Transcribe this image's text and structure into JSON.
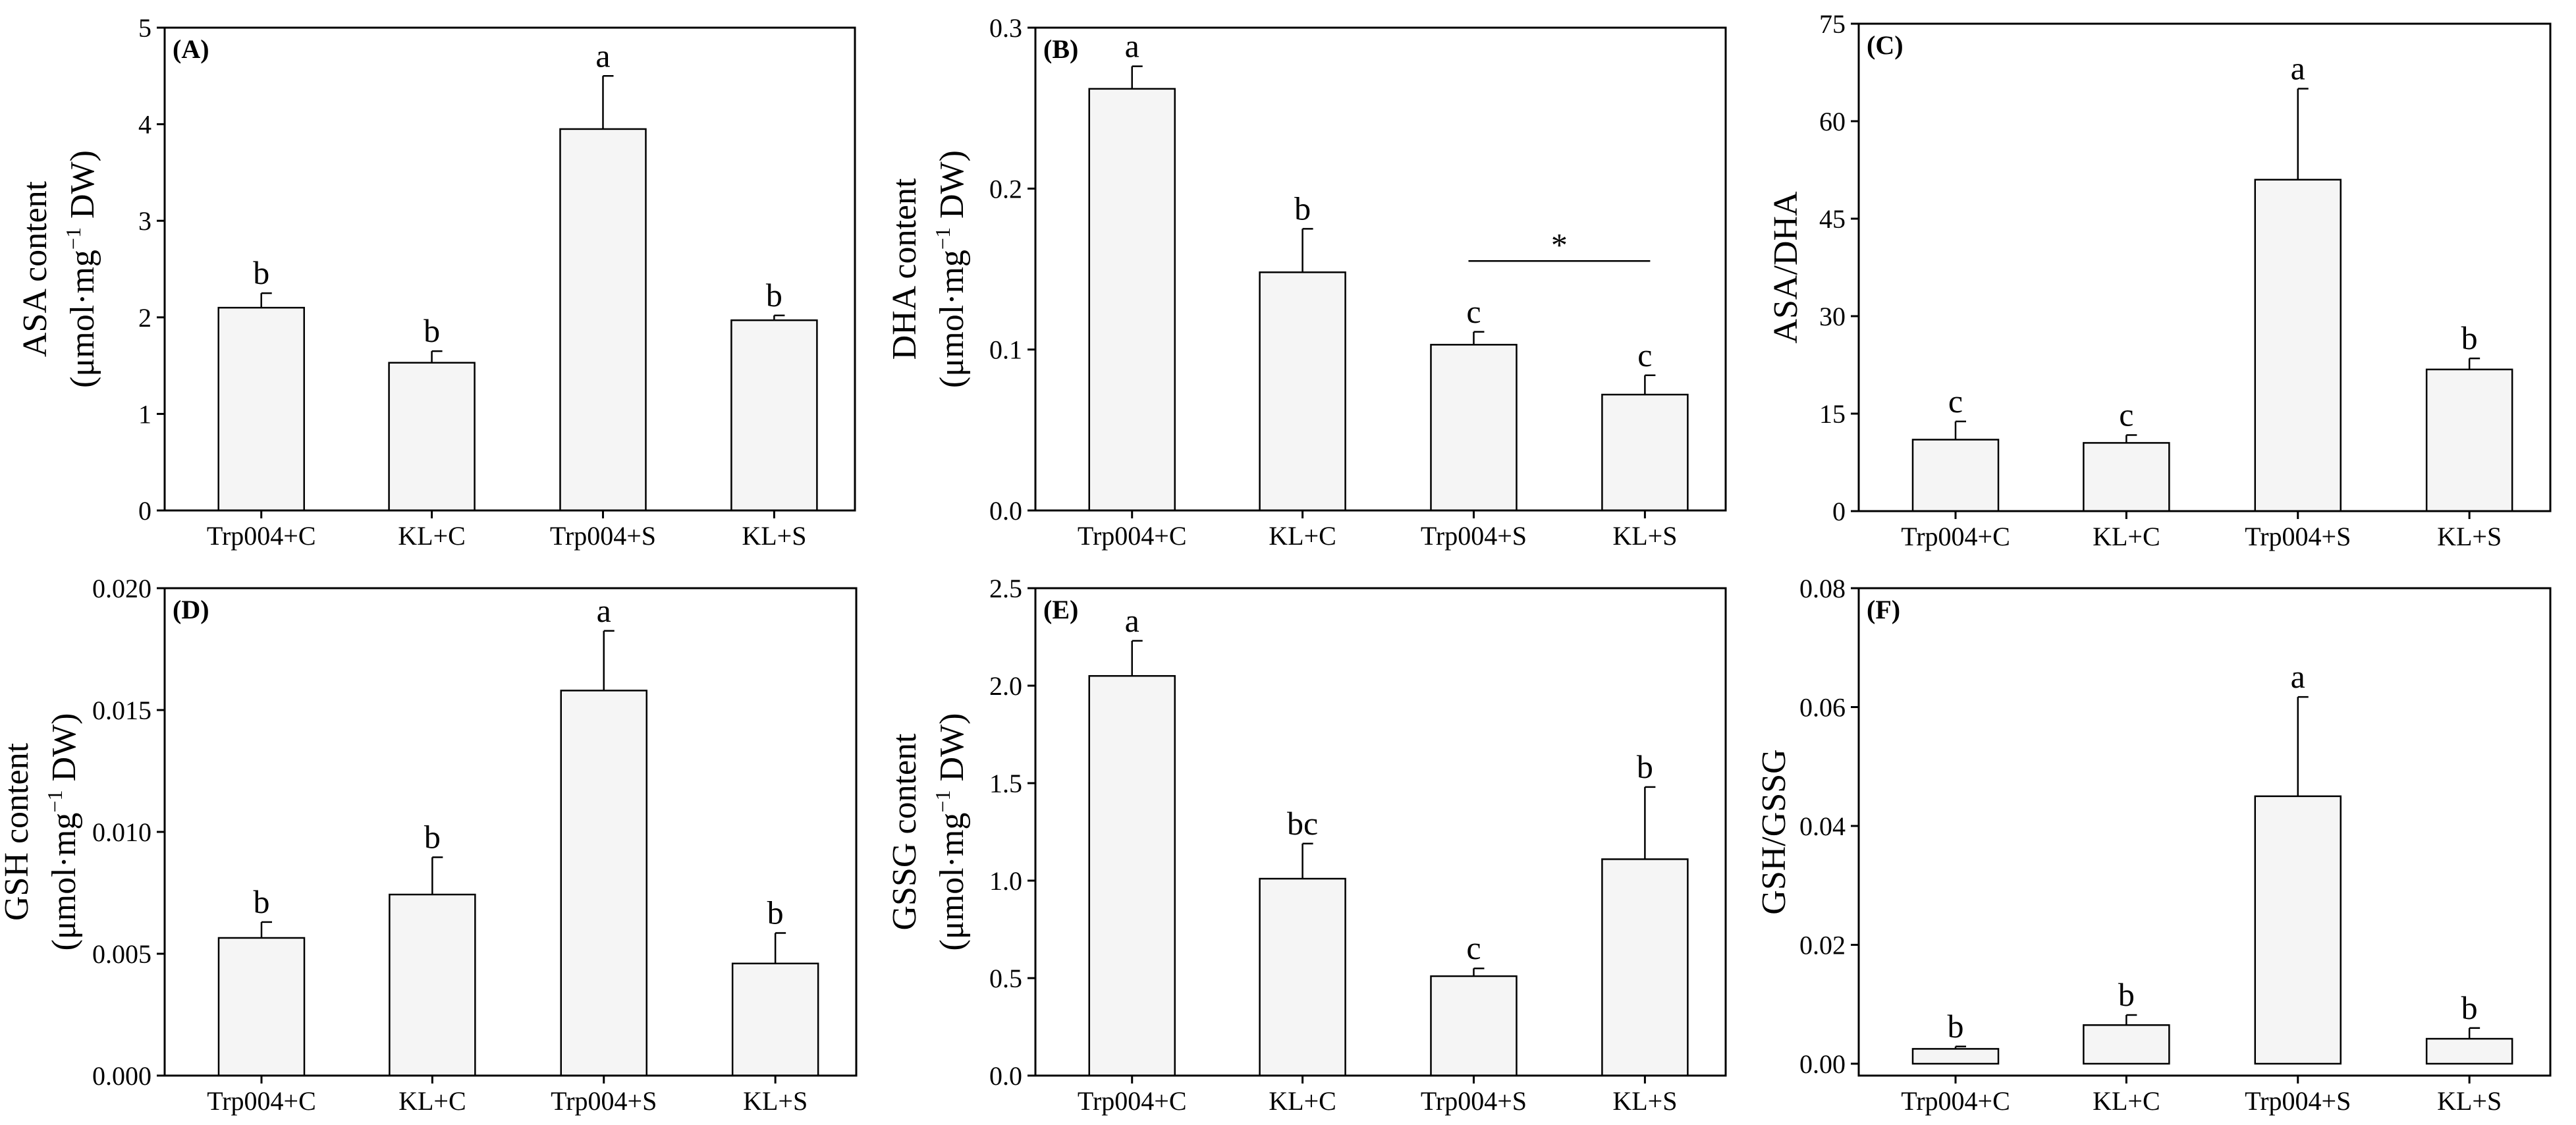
{
  "chart_data": [
    {
      "type": "bar",
      "panel_label": "(A)",
      "categories": [
        "Trp004+C",
        "KL+C",
        "Trp004+S",
        "KL+S"
      ],
      "values": [
        2.1,
        1.53,
        3.95,
        1.97
      ],
      "errors": [
        0.15,
        0.12,
        0.55,
        0.05
      ],
      "letters": [
        "b",
        "b",
        "a",
        "b"
      ],
      "ylabel_line1": "ASA content",
      "ylabel_line2": {
        "pre": "(μmol·mg",
        "sup": "−1",
        "post": " DW)"
      },
      "ylim": [
        0,
        5
      ],
      "yticks": [
        0,
        1,
        2,
        3,
        4,
        5
      ],
      "ytick_labels": [
        "0",
        "1",
        "2",
        "3",
        "4",
        "5"
      ]
    },
    {
      "type": "bar",
      "panel_label": "(B)",
      "categories": [
        "Trp004+C",
        "KL+C",
        "Trp004+S",
        "KL+S"
      ],
      "values": [
        0.262,
        0.148,
        0.103,
        0.072
      ],
      "errors": [
        0.014,
        0.027,
        0.008,
        0.012
      ],
      "letters": [
        "a",
        "b",
        "c",
        "c"
      ],
      "ylabel_line1": "DHA content",
      "ylabel_line2": {
        "pre": "(μmol·mg",
        "sup": "−1",
        "post": " DW)"
      },
      "ylim": [
        0,
        0.3
      ],
      "yticks": [
        0,
        0.1,
        0.2,
        0.3
      ],
      "ytick_labels": [
        "0.0",
        "0.1",
        "0.2",
        "0.3"
      ],
      "annotation": {
        "text": "*",
        "from_index": 2,
        "to_index": 3,
        "y_value": 0.155
      }
    },
    {
      "type": "bar",
      "panel_label": "(C)",
      "categories": [
        "Trp004+C",
        "KL+C",
        "Trp004+S",
        "KL+S"
      ],
      "values": [
        11,
        10.5,
        51,
        21.8
      ],
      "errors": [
        2.8,
        1.2,
        14,
        1.7
      ],
      "letters": [
        "c",
        "c",
        "a",
        "b"
      ],
      "ylabel_line1": "ASA/DHA",
      "ylim": [
        0,
        75
      ],
      "yticks": [
        0,
        15,
        30,
        45,
        60,
        75
      ],
      "ytick_labels": [
        "0",
        "15",
        "30",
        "45",
        "60",
        "75"
      ]
    },
    {
      "type": "bar",
      "panel_label": "(D)",
      "categories": [
        "Trp004+C",
        "KL+C",
        "Trp004+S",
        "KL+S"
      ],
      "values": [
        0.00565,
        0.00743,
        0.0158,
        0.0046
      ],
      "errors": [
        0.00065,
        0.00153,
        0.00245,
        0.00125
      ],
      "letters": [
        "b",
        "b",
        "a",
        "b"
      ],
      "ylabel_line1": "GSH content",
      "ylabel_line2": {
        "pre": "(μmol·mg",
        "sup": "−1",
        "post": " DW)"
      },
      "ylim": [
        0,
        0.02
      ],
      "yticks": [
        0,
        0.005,
        0.01,
        0.015,
        0.02
      ],
      "ytick_labels": [
        "0.000",
        "0.005",
        "0.010",
        "0.015",
        "0.020"
      ]
    },
    {
      "type": "bar",
      "panel_label": "(E)",
      "categories": [
        "Trp004+C",
        "KL+C",
        "Trp004+S",
        "KL+S"
      ],
      "values": [
        2.05,
        1.01,
        0.51,
        1.11
      ],
      "errors": [
        0.18,
        0.18,
        0.04,
        0.37
      ],
      "letters": [
        "a",
        "bc",
        "c",
        "b"
      ],
      "ylabel_line1": "GSSG content",
      "ylabel_line2": {
        "pre": "(μmol·mg",
        "sup": "−1",
        "post": " DW)"
      },
      "ylim": [
        0,
        2.5
      ],
      "yticks": [
        0,
        0.5,
        1,
        1.5,
        2,
        2.5
      ],
      "ytick_labels": [
        "0.0",
        "0.5",
        "1.0",
        "1.5",
        "2.0",
        "2.5"
      ]
    },
    {
      "type": "bar",
      "panel_label": "(F)",
      "categories": [
        "Trp004+C",
        "KL+C",
        "Trp004+S",
        "KL+S"
      ],
      "values": [
        0.0025,
        0.0065,
        0.045,
        0.0042
      ],
      "errors": [
        0.0004,
        0.0017,
        0.0167,
        0.0018
      ],
      "letters": [
        "b",
        "b",
        "a",
        "b"
      ],
      "ylabel_line1": "GSH/GSSG",
      "ylim": [
        -0.002,
        0.08
      ],
      "yticks": [
        0,
        0.02,
        0.04,
        0.06,
        0.08
      ],
      "ytick_labels": [
        "0.00",
        "0.02",
        "0.04",
        "0.06",
        "0.08"
      ]
    }
  ],
  "colors": {
    "bar_fill": "#f5f5f5",
    "stroke": "#000000",
    "background": "#ffffff"
  }
}
